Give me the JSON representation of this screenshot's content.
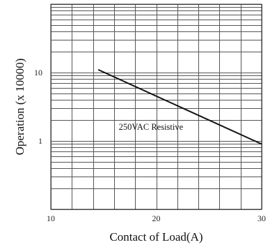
{
  "chart_data": {
    "type": "line",
    "scale": "log-y",
    "xlabel": "Contact of Load(A)",
    "ylabel": "Operation (x 10000)",
    "xlim": [
      10,
      30
    ],
    "ylim": [
      0.1,
      100
    ],
    "x_ticks": [
      10,
      20,
      30
    ],
    "x_tick_labels": [
      "10",
      "20",
      "30"
    ],
    "y_ticks": [
      1,
      10
    ],
    "y_tick_labels": [
      "1",
      "10"
    ],
    "grid": true,
    "series": [
      {
        "x": [
          14.5,
          30
        ],
        "y": [
          11,
          0.9
        ]
      }
    ],
    "annotations": [
      {
        "text": "250VAC Resistive",
        "x": 19.5,
        "y": 1.45
      }
    ]
  }
}
